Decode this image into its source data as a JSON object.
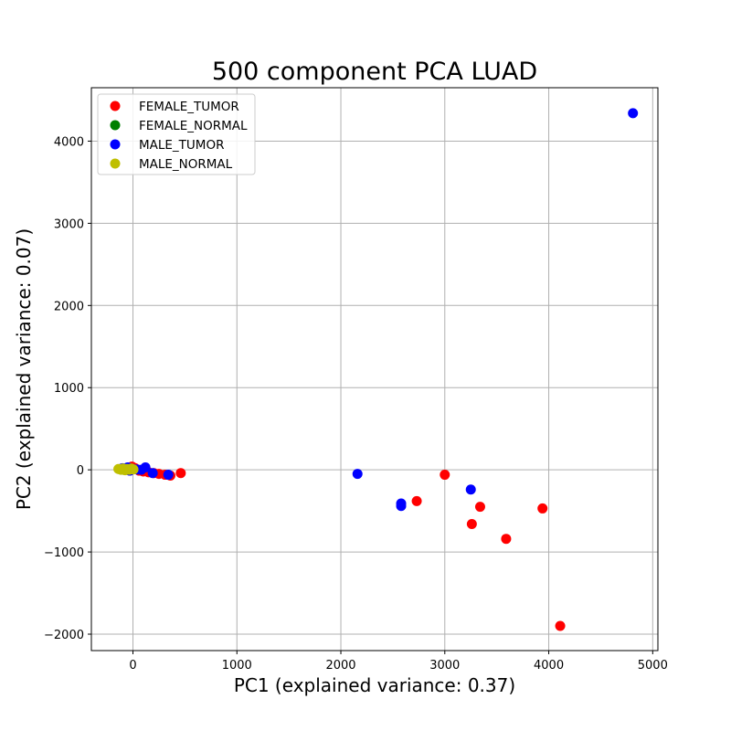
{
  "chart_data": {
    "type": "scatter",
    "title": "500 component PCA LUAD",
    "xlabel": "PC1 (explained variance: 0.37)",
    "ylabel": "PC2 (explained variance: 0.07)",
    "xlim": [
      -400,
      5050
    ],
    "ylim": [
      -2200,
      4650
    ],
    "xticks": [
      0,
      1000,
      2000,
      3000,
      4000,
      5000
    ],
    "yticks": [
      -2000,
      -1000,
      0,
      1000,
      2000,
      3000,
      4000
    ],
    "grid": true,
    "legend_position": "top-left",
    "series": [
      {
        "name": "FEMALE_TUMOR",
        "color": "#ff0000",
        "points": [
          [
            -10,
            40
          ],
          [
            20,
            20
          ],
          [
            60,
            -10
          ],
          [
            100,
            -20
          ],
          [
            150,
            -30
          ],
          [
            200,
            -40
          ],
          [
            250,
            -50
          ],
          [
            310,
            -60
          ],
          [
            360,
            -70
          ],
          [
            460,
            -40
          ],
          [
            2730,
            -380
          ],
          [
            3000,
            -60
          ],
          [
            3260,
            -660
          ],
          [
            3340,
            -450
          ],
          [
            3590,
            -840
          ],
          [
            3940,
            -470
          ],
          [
            4110,
            -1900
          ]
        ]
      },
      {
        "name": "FEMALE_NORMAL",
        "color": "#008000",
        "points": [
          [
            -120,
            10
          ],
          [
            -90,
            0
          ],
          [
            -60,
            20
          ],
          [
            -30,
            5
          ]
        ]
      },
      {
        "name": "MALE_TUMOR",
        "color": "#0000ff",
        "points": [
          [
            -100,
            20
          ],
          [
            -70,
            0
          ],
          [
            -50,
            30
          ],
          [
            -30,
            -10
          ],
          [
            0,
            10
          ],
          [
            40,
            5
          ],
          [
            80,
            0
          ],
          [
            120,
            30
          ],
          [
            190,
            -40
          ],
          [
            340,
            -60
          ],
          [
            2160,
            -50
          ],
          [
            2580,
            -410
          ],
          [
            2580,
            -440
          ],
          [
            3250,
            -240
          ],
          [
            4810,
            4340
          ]
        ]
      },
      {
        "name": "MALE_NORMAL",
        "color": "#bfbf00",
        "points": [
          [
            -140,
            10
          ],
          [
            -115,
            0
          ],
          [
            -95,
            15
          ],
          [
            -75,
            -5
          ],
          [
            -55,
            10
          ],
          [
            -35,
            0
          ],
          [
            -15,
            15
          ],
          [
            5,
            5
          ]
        ]
      }
    ]
  }
}
